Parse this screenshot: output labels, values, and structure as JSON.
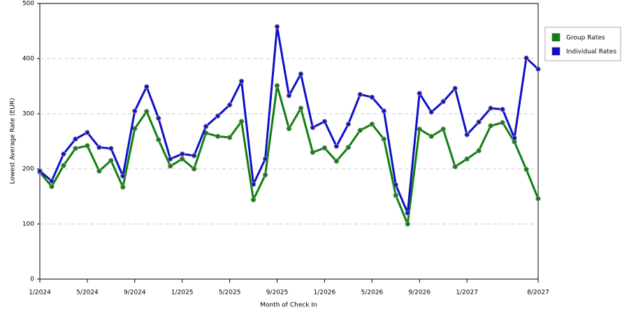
{
  "chart_data": {
    "type": "line",
    "x_label": "Month of Check In",
    "y_label": "Lowest Average Rate (EUR)",
    "categories": [
      "1/2024",
      null,
      null,
      null,
      "5/2024",
      null,
      null,
      null,
      "9/2024",
      null,
      null,
      null,
      "1/2025",
      null,
      null,
      null,
      "5/2025",
      null,
      null,
      null,
      "9/2025",
      null,
      null,
      null,
      "1/2026",
      null,
      null,
      null,
      "5/2026",
      null,
      null,
      null,
      "9/2026",
      null,
      null,
      null,
      "1/2027",
      null,
      null,
      null,
      null,
      null,
      "8/2027"
    ],
    "series": [
      {
        "name": "Group Rates",
        "color": "#108010",
        "values": [
          194,
          168,
          206,
          237,
          242,
          196,
          215,
          167,
          273,
          304,
          253,
          205,
          218,
          200,
          265,
          259,
          257,
          286,
          144,
          189,
          351,
          273,
          310,
          230,
          238,
          214,
          239,
          270,
          281,
          254,
          152,
          100,
          272,
          259,
          272,
          204,
          218,
          233,
          278,
          284,
          249,
          199,
          146
        ]
      },
      {
        "name": "Individual Rates",
        "color": "#1010c8",
        "values": [
          196,
          178,
          227,
          254,
          266,
          239,
          237,
          187,
          305,
          349,
          292,
          218,
          227,
          224,
          277,
          296,
          316,
          359,
          172,
          218,
          458,
          333,
          372,
          275,
          286,
          241,
          281,
          335,
          330,
          305,
          171,
          120,
          337,
          303,
          322,
          346,
          262,
          285,
          310,
          308,
          256,
          401,
          381
        ]
      }
    ],
    "ylim": [
      0,
      500
    ],
    "yticks": [
      0,
      100,
      200,
      300,
      400,
      500
    ],
    "grid": true,
    "legend": "right"
  }
}
